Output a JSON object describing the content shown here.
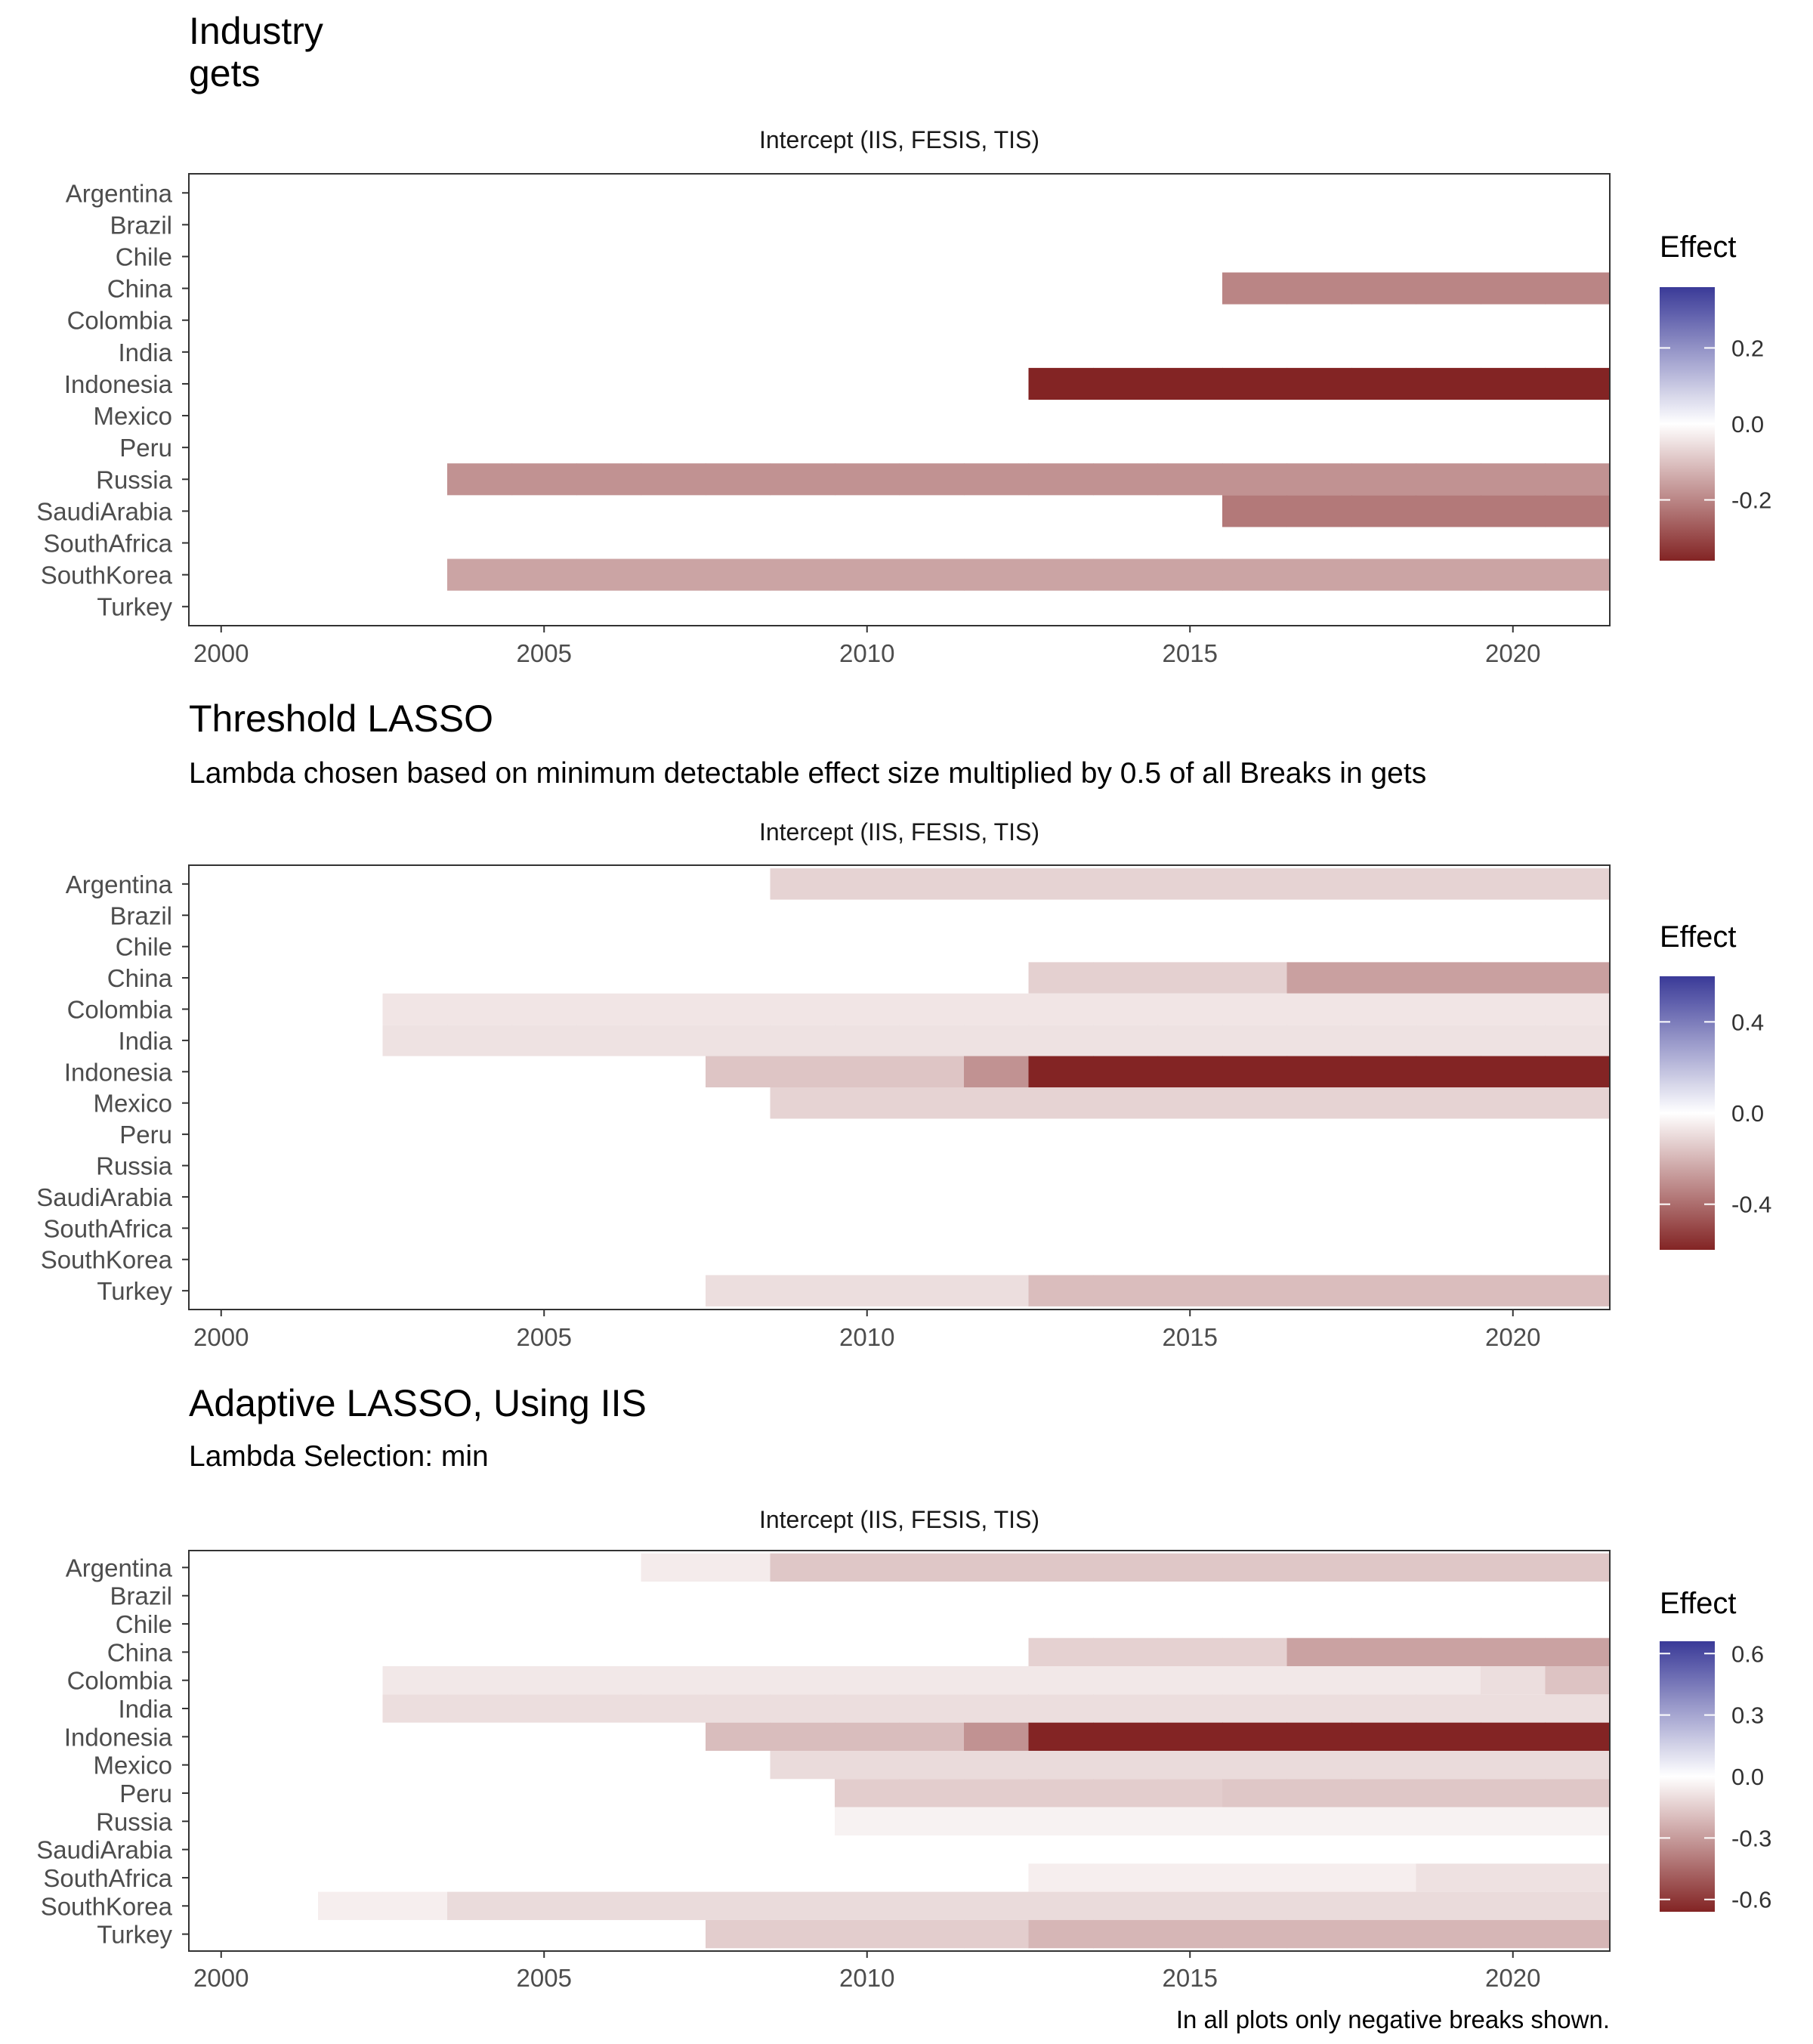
{
  "caption": "In all plots only negative breaks shown.",
  "colors": {
    "neg_dark": "#832424",
    "pos_dark": "#3a3a98",
    "mid": "#ffffff"
  },
  "chart_data": [
    {
      "type": "heatmap",
      "title": "Industry\ngets",
      "subtitle": "",
      "facet_label": "Intercept (IIS, FESIS, TIS)",
      "legend_title": "Effect",
      "legend_ticks": [
        0.2,
        0.0,
        -0.2
      ],
      "legend_tick_labels": [
        "0.2",
        "0.0",
        "-0.2"
      ],
      "scale_limits": [
        -0.36,
        0.36
      ],
      "xlim": [
        1999.5,
        2021.5
      ],
      "x_ticks": [
        2000,
        2005,
        2010,
        2015,
        2020
      ],
      "countries": [
        "Argentina",
        "Brazil",
        "Chile",
        "China",
        "Colombia",
        "India",
        "Indonesia",
        "Mexico",
        "Peru",
        "Russia",
        "SaudiArabia",
        "SouthAfrica",
        "SouthKorea",
        "Turkey"
      ],
      "breaks": [
        {
          "country": "China",
          "segments": [
            {
              "from": 2016,
              "to": 2021,
              "effect": -0.2
            }
          ]
        },
        {
          "country": "Indonesia",
          "segments": [
            {
              "from": 2013,
              "to": 2021,
              "effect": -0.36
            }
          ]
        },
        {
          "country": "Russia",
          "segments": [
            {
              "from": 2004,
              "to": 2021,
              "effect": -0.18
            }
          ]
        },
        {
          "country": "SaudiArabia",
          "segments": [
            {
              "from": 2016,
              "to": 2021,
              "effect": -0.22
            }
          ]
        },
        {
          "country": "SouthKorea",
          "segments": [
            {
              "from": 2004,
              "to": 2021,
              "effect": -0.15
            }
          ]
        }
      ]
    },
    {
      "type": "heatmap",
      "title": "Threshold LASSO",
      "subtitle": "Lambda chosen based on minimum detectable effect size multiplied by 0.5 of all Breaks in gets",
      "facet_label": "Intercept (IIS, FESIS, TIS)",
      "legend_title": "Effect",
      "legend_ticks": [
        0.4,
        0.0,
        -0.4
      ],
      "legend_tick_labels": [
        "0.4",
        "0.0",
        "-0.4"
      ],
      "scale_limits": [
        -0.6,
        0.6
      ],
      "xlim": [
        1999.5,
        2021.5
      ],
      "x_ticks": [
        2000,
        2005,
        2010,
        2015,
        2020
      ],
      "countries": [
        "Argentina",
        "Brazil",
        "Chile",
        "China",
        "Colombia",
        "India",
        "Indonesia",
        "Mexico",
        "Peru",
        "Russia",
        "SaudiArabia",
        "SouthAfrica",
        "SouthKorea",
        "Turkey"
      ],
      "breaks": [
        {
          "country": "Argentina",
          "segments": [
            {
              "from": 2009,
              "to": 2021,
              "effect": -0.12
            }
          ]
        },
        {
          "country": "China",
          "segments": [
            {
              "from": 2013,
              "to": 2016,
              "effect": -0.13
            },
            {
              "from": 2017,
              "to": 2021,
              "effect": -0.26
            }
          ]
        },
        {
          "country": "Colombia",
          "segments": [
            {
              "from": 2003,
              "to": 2021,
              "effect": -0.07
            }
          ]
        },
        {
          "country": "India",
          "segments": [
            {
              "from": 2003,
              "to": 2021,
              "effect": -0.08
            }
          ]
        },
        {
          "country": "Indonesia",
          "segments": [
            {
              "from": 2008,
              "to": 2011,
              "effect": -0.16
            },
            {
              "from": 2012,
              "to": 2012,
              "effect": -0.3
            },
            {
              "from": 2013,
              "to": 2021,
              "effect": -0.6
            }
          ]
        },
        {
          "country": "Mexico",
          "segments": [
            {
              "from": 2009,
              "to": 2021,
              "effect": -0.12
            }
          ]
        },
        {
          "country": "Turkey",
          "segments": [
            {
              "from": 2008,
              "to": 2012,
              "effect": -0.09
            },
            {
              "from": 2013,
              "to": 2021,
              "effect": -0.18
            }
          ]
        }
      ]
    },
    {
      "type": "heatmap",
      "title": "Adaptive LASSO, Using IIS",
      "subtitle": "Lambda Selection: min",
      "facet_label": "Intercept (IIS, FESIS, TIS)",
      "legend_title": "Effect",
      "legend_ticks": [
        0.6,
        0.3,
        0.0,
        -0.3,
        -0.6
      ],
      "legend_tick_labels": [
        "0.6",
        "0.3",
        "0.0",
        "-0.3",
        "-0.6"
      ],
      "scale_limits": [
        -0.66,
        0.66
      ],
      "xlim": [
        1999.5,
        2021.5
      ],
      "x_ticks": [
        2000,
        2005,
        2010,
        2015,
        2020
      ],
      "countries": [
        "Argentina",
        "Brazil",
        "Chile",
        "China",
        "Colombia",
        "India",
        "Indonesia",
        "Mexico",
        "Peru",
        "Russia",
        "SaudiArabia",
        "SouthAfrica",
        "SouthKorea",
        "Turkey"
      ],
      "breaks": [
        {
          "country": "Argentina",
          "segments": [
            {
              "from": 2007,
              "to": 2008,
              "effect": -0.06
            },
            {
              "from": 2009,
              "to": 2021,
              "effect": -0.17
            }
          ]
        },
        {
          "country": "China",
          "segments": [
            {
              "from": 2013,
              "to": 2016,
              "effect": -0.14
            },
            {
              "from": 2017,
              "to": 2021,
              "effect": -0.28
            }
          ]
        },
        {
          "country": "Colombia",
          "segments": [
            {
              "from": 2003,
              "to": 2019,
              "effect": -0.07
            },
            {
              "from": 2020,
              "to": 2020,
              "effect": -0.1
            },
            {
              "from": 2021,
              "to": 2021,
              "effect": -0.18
            }
          ]
        },
        {
          "country": "India",
          "segments": [
            {
              "from": 2003,
              "to": 2021,
              "effect": -0.1
            }
          ]
        },
        {
          "country": "Indonesia",
          "segments": [
            {
              "from": 2008,
              "to": 2011,
              "effect": -0.2
            },
            {
              "from": 2012,
              "to": 2012,
              "effect": -0.33
            },
            {
              "from": 2013,
              "to": 2021,
              "effect": -0.66
            }
          ]
        },
        {
          "country": "Mexico",
          "segments": [
            {
              "from": 2009,
              "to": 2021,
              "effect": -0.11
            }
          ]
        },
        {
          "country": "Peru",
          "segments": [
            {
              "from": 2010,
              "to": 2015,
              "effect": -0.15
            },
            {
              "from": 2016,
              "to": 2021,
              "effect": -0.17
            }
          ]
        },
        {
          "country": "Russia",
          "segments": [
            {
              "from": 2010,
              "to": 2021,
              "effect": -0.04
            }
          ]
        },
        {
          "country": "SouthAfrica",
          "segments": [
            {
              "from": 2013,
              "to": 2018,
              "effect": -0.05
            },
            {
              "from": 2019,
              "to": 2021,
              "effect": -0.09
            }
          ]
        },
        {
          "country": "SouthKorea",
          "segments": [
            {
              "from": 2002,
              "to": 2003,
              "effect": -0.05
            },
            {
              "from": 2004,
              "to": 2021,
              "effect": -0.11
            }
          ]
        },
        {
          "country": "Turkey",
          "segments": [
            {
              "from": 2008,
              "to": 2012,
              "effect": -0.15
            },
            {
              "from": 2013,
              "to": 2021,
              "effect": -0.22
            }
          ]
        }
      ]
    }
  ]
}
